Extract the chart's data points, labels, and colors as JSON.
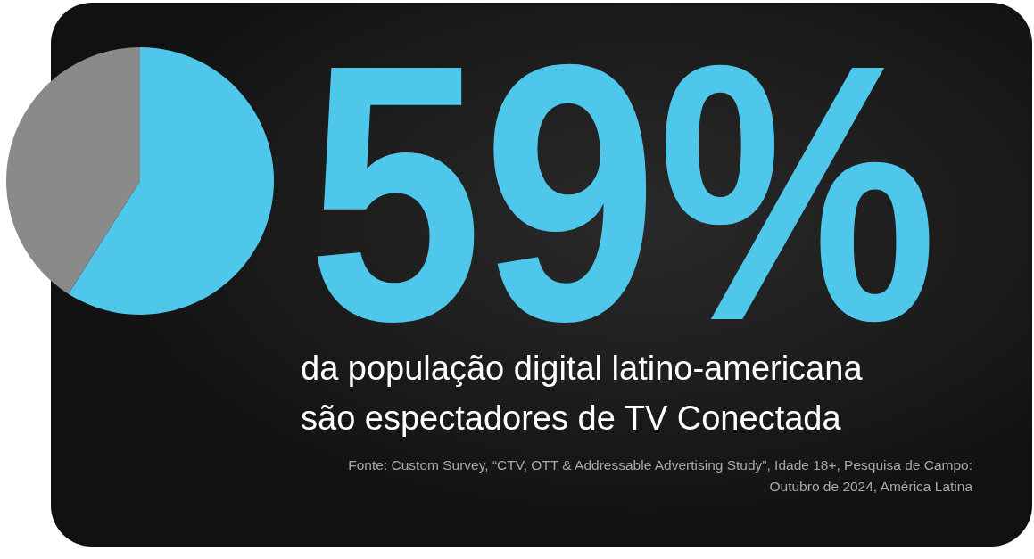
{
  "chart_data": {
    "type": "pie",
    "categories": [
      null,
      null
    ],
    "values": [
      59,
      41
    ],
    "colors": [
      "#4fc7ea",
      "#8a8a8a"
    ],
    "value_labels": [
      "59%",
      null
    ],
    "legend": false,
    "subtitle": "da população digital latino-americana são espectadores de TV Conectada",
    "annotations": [
      "Fonte: Custom Survey, “CTV, OTT & Addressable Advertising Study”, Idade 18+, Pesquisa de Campo: Outubro de 2024, América Latina"
    ]
  }
}
